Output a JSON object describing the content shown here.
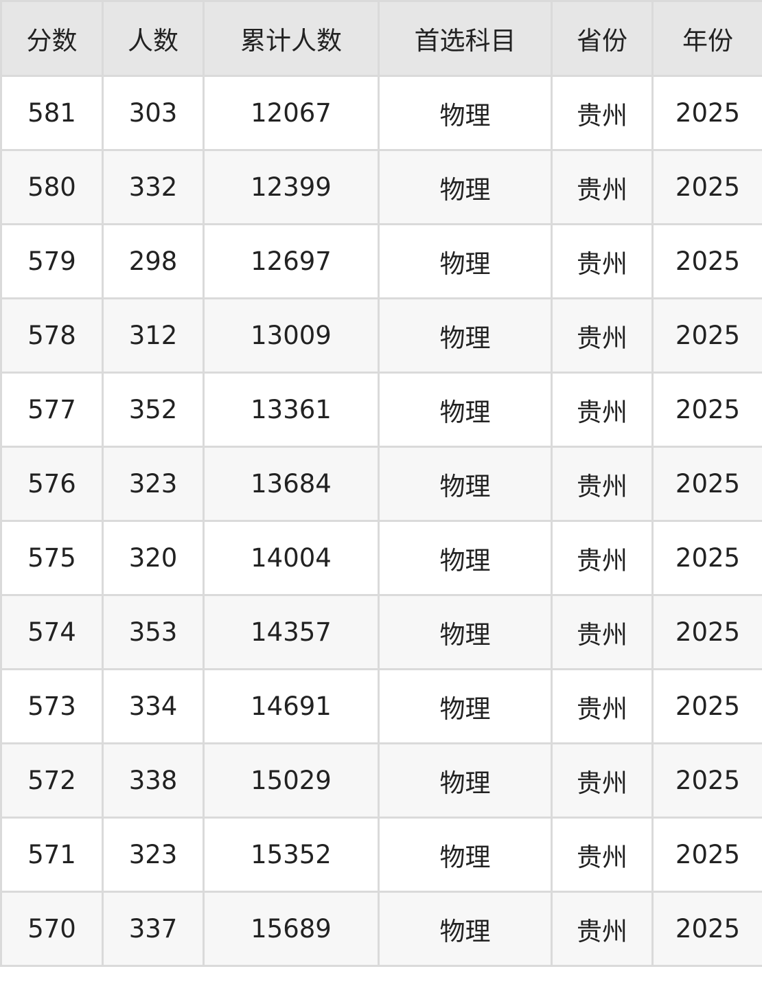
{
  "table": {
    "headers": [
      "分数",
      "人数",
      "累计人数",
      "首选科目",
      "省份",
      "年份"
    ],
    "rows": [
      [
        "581",
        "303",
        "12067",
        "物理",
        "贵州",
        "2025"
      ],
      [
        "580",
        "332",
        "12399",
        "物理",
        "贵州",
        "2025"
      ],
      [
        "579",
        "298",
        "12697",
        "物理",
        "贵州",
        "2025"
      ],
      [
        "578",
        "312",
        "13009",
        "物理",
        "贵州",
        "2025"
      ],
      [
        "577",
        "352",
        "13361",
        "物理",
        "贵州",
        "2025"
      ],
      [
        "576",
        "323",
        "13684",
        "物理",
        "贵州",
        "2025"
      ],
      [
        "575",
        "320",
        "14004",
        "物理",
        "贵州",
        "2025"
      ],
      [
        "574",
        "353",
        "14357",
        "物理",
        "贵州",
        "2025"
      ],
      [
        "573",
        "334",
        "14691",
        "物理",
        "贵州",
        "2025"
      ],
      [
        "572",
        "338",
        "15029",
        "物理",
        "贵州",
        "2025"
      ],
      [
        "571",
        "323",
        "15352",
        "物理",
        "贵州",
        "2025"
      ],
      [
        "570",
        "337",
        "15689",
        "物理",
        "贵州",
        "2025"
      ]
    ]
  },
  "colors": {
    "header_bg": "#e6e6e6",
    "row_alt_bg": "#f7f7f7",
    "border": "#dadada",
    "text": "#222222"
  }
}
